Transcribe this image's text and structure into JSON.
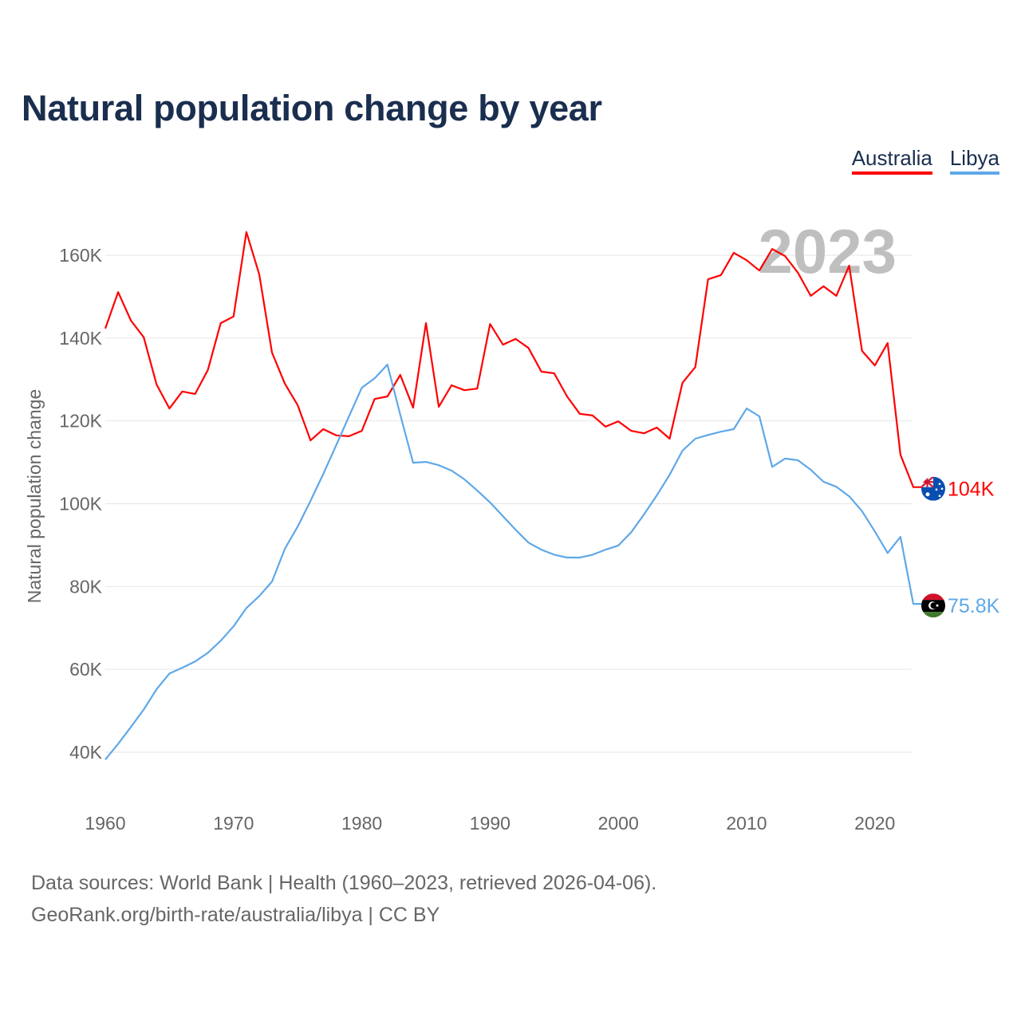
{
  "title": "Natural population change by year",
  "footer": {
    "line1": "Data sources: World Bank | Health (1960–2023, retrieved 2026-04-06).",
    "line2": "GeoRank.org/birth-rate/australia/libya | CC BY"
  },
  "chart_data": {
    "type": "line",
    "title": "Natural population change by year",
    "xlabel": "",
    "ylabel": "Natural population change",
    "year_watermark": "2023",
    "xlim": [
      1960,
      2023
    ],
    "ylim": [
      30000,
      170000
    ],
    "x_ticks": [
      1960,
      1970,
      1980,
      1990,
      2000,
      2010,
      2020
    ],
    "y_ticks": [
      40000,
      60000,
      80000,
      100000,
      120000,
      140000,
      160000
    ],
    "y_tick_labels": [
      "40K",
      "60K",
      "80K",
      "100K",
      "120K",
      "140K",
      "160K"
    ],
    "grid": true,
    "legend_position": "top-right",
    "x": [
      1960,
      1961,
      1962,
      1963,
      1964,
      1965,
      1966,
      1967,
      1968,
      1969,
      1970,
      1971,
      1972,
      1973,
      1974,
      1975,
      1976,
      1977,
      1978,
      1979,
      1980,
      1981,
      1982,
      1983,
      1984,
      1985,
      1986,
      1987,
      1988,
      1989,
      1990,
      1991,
      1992,
      1993,
      1994,
      1995,
      1996,
      1997,
      1998,
      1999,
      2000,
      2001,
      2002,
      2003,
      2004,
      2005,
      2006,
      2007,
      2008,
      2009,
      2010,
      2011,
      2012,
      2013,
      2014,
      2015,
      2016,
      2017,
      2018,
      2019,
      2020,
      2021,
      2022,
      2023
    ],
    "series": [
      {
        "name": "Australia",
        "color": "#ff0000",
        "end_label": "104K",
        "flag": "australia-flag",
        "values": [
          142300,
          151100,
          144200,
          140200,
          128800,
          123000,
          127100,
          126500,
          132300,
          143600,
          145200,
          165600,
          155400,
          136500,
          129000,
          123800,
          115300,
          118000,
          116500,
          116300,
          117600,
          125300,
          125900,
          131100,
          123200,
          143600,
          123400,
          128600,
          127400,
          127800,
          143400,
          138400,
          139800,
          137600,
          131900,
          131500,
          125900,
          121700,
          121300,
          118600,
          119900,
          117600,
          117000,
          118400,
          115700,
          129200,
          133000,
          154200,
          155200,
          160600,
          158800,
          156300,
          161500,
          159800,
          155800,
          150200,
          152500,
          150200,
          157500,
          136900,
          133400,
          138800,
          111800,
          104000
        ]
      },
      {
        "name": "Libya",
        "color": "#5fa8e8",
        "end_label": "75.8K",
        "flag": "libya-flag",
        "values": [
          38200,
          42000,
          46100,
          50300,
          55200,
          59000,
          60400,
          61900,
          64000,
          66900,
          70400,
          74800,
          77700,
          81200,
          89100,
          94500,
          100700,
          107200,
          114100,
          121100,
          128000,
          130300,
          133600,
          121500,
          109900,
          110100,
          109300,
          108000,
          105900,
          103200,
          100300,
          97000,
          93700,
          90600,
          88900,
          87700,
          87000,
          87000,
          87700,
          88900,
          89900,
          93100,
          97400,
          102000,
          107000,
          112800,
          115700,
          116600,
          117400,
          118000,
          123000,
          121100,
          108900,
          110900,
          110500,
          108200,
          105300,
          104100,
          101800,
          98200,
          93300,
          88100,
          92000,
          75800
        ]
      }
    ]
  }
}
